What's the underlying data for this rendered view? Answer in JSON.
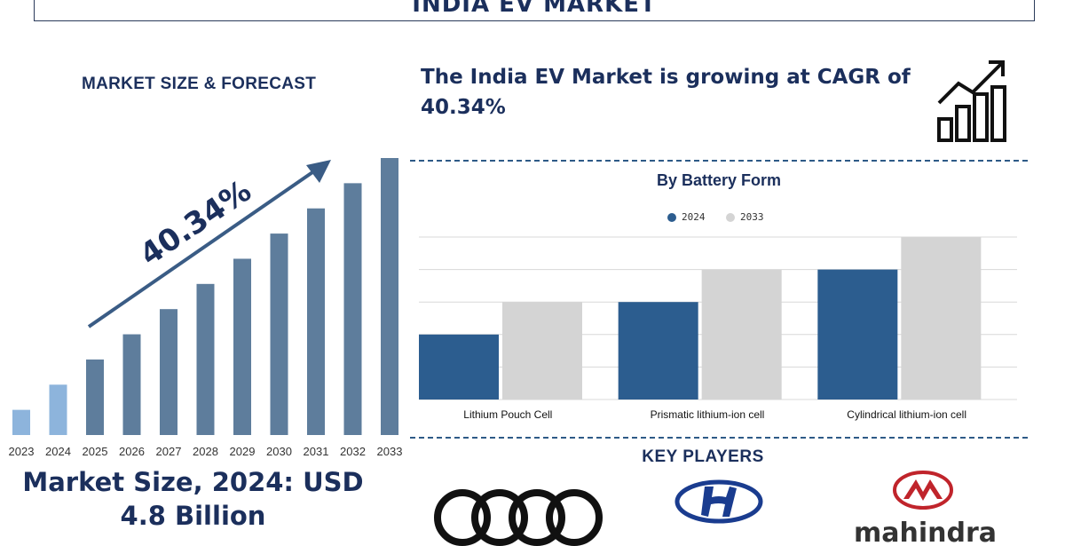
{
  "header": {
    "title": "INDIA EV MARKET"
  },
  "left": {
    "heading": "MARKET SIZE & FORECAST",
    "growth_label": "40.34%",
    "market_size_line1": "Market Size, 2024: USD",
    "market_size_line2": "4.8 Billion"
  },
  "right": {
    "cagr_line1": "The India EV Market is growing at CAGR of",
    "cagr_line2": "40.34%"
  },
  "key_players": {
    "title": "KEY PLAYERS",
    "logos": [
      "audi-logo",
      "hyundai-logo",
      "mahindra-logo"
    ],
    "mahindra_text": "mahindra"
  },
  "colors": {
    "navy": "#1b2f5c",
    "bar_dark": "#5e7d9c",
    "bar_light": "#8db4dc",
    "series_2024": "#2c5d8f",
    "series_2033": "#d4d4d4",
    "arrow": "#3a5c85"
  },
  "chart_data": [
    {
      "type": "bar",
      "categories": [
        "2023",
        "2024",
        "2025",
        "2026",
        "2027",
        "2028",
        "2029",
        "2030",
        "2031",
        "2032",
        "2033"
      ],
      "values": [
        1,
        2,
        3,
        4,
        5,
        6,
        7,
        8,
        9,
        10,
        11
      ],
      "title": "MARKET SIZE & FORECAST",
      "highlight_categories": [
        "2023",
        "2024"
      ],
      "ylim": [
        0,
        11
      ],
      "grid": false,
      "annotation": "40.34%"
    },
    {
      "type": "bar",
      "title": "By Battery Form",
      "categories": [
        "Lithium Pouch Cell",
        "Prismatic lithium-ion cell",
        "Cylindrical lithium-ion cell"
      ],
      "series": [
        {
          "name": "2024",
          "values": [
            2,
            3,
            4
          ]
        },
        {
          "name": "2033",
          "values": [
            3,
            4,
            5
          ]
        }
      ],
      "ylim": [
        0,
        5
      ],
      "grid": true,
      "legend": "top-center"
    }
  ]
}
